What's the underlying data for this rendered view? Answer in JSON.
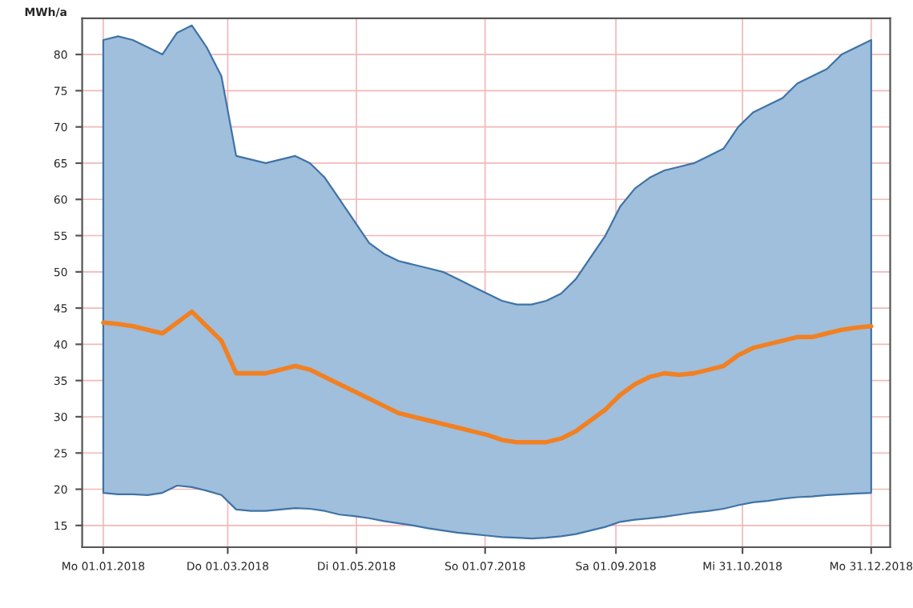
{
  "chart_data": {
    "type": "line",
    "ylabel": "MWh/a",
    "x": [
      "2018-01-01",
      "2018-01-08",
      "2018-01-15",
      "2018-01-22",
      "2018-01-29",
      "2018-02-05",
      "2018-02-12",
      "2018-02-19",
      "2018-02-26",
      "2018-03-05",
      "2018-03-12",
      "2018-03-19",
      "2018-03-26",
      "2018-04-02",
      "2018-04-09",
      "2018-04-16",
      "2018-04-23",
      "2018-04-30",
      "2018-05-07",
      "2018-05-14",
      "2018-05-21",
      "2018-05-28",
      "2018-06-04",
      "2018-06-11",
      "2018-06-18",
      "2018-06-25",
      "2018-07-02",
      "2018-07-09",
      "2018-07-16",
      "2018-07-23",
      "2018-07-30",
      "2018-08-06",
      "2018-08-13",
      "2018-08-20",
      "2018-08-27",
      "2018-09-03",
      "2018-09-10",
      "2018-09-17",
      "2018-09-24",
      "2018-10-01",
      "2018-10-08",
      "2018-10-15",
      "2018-10-22",
      "2018-10-29",
      "2018-11-05",
      "2018-11-12",
      "2018-11-19",
      "2018-11-26",
      "2018-12-03",
      "2018-12-10",
      "2018-12-17",
      "2018-12-24",
      "2018-12-31"
    ],
    "series": [
      {
        "color": "#f28022",
        "values": [
          43,
          42.8,
          42.5,
          42,
          41.5,
          43,
          44.5,
          42.5,
          40.5,
          36,
          36,
          36,
          36.5,
          37,
          36.5,
          35.5,
          34.5,
          33.5,
          32.5,
          31.5,
          30.5,
          30,
          29.5,
          29,
          28.5,
          28,
          27.5,
          26.8,
          26.5,
          26.5,
          26.5,
          27,
          28,
          29.5,
          31,
          33,
          34.5,
          35.5,
          36,
          35.8,
          36,
          36.5,
          37,
          38.5,
          39.5,
          40,
          40.5,
          41,
          41,
          41.5,
          42,
          42.3,
          42.5
        ],
        "lower": [
          19.5,
          19.3,
          19.3,
          19.2,
          19.5,
          20.5,
          20.3,
          19.8,
          19.2,
          17.2,
          17,
          17,
          17.2,
          17.4,
          17.3,
          17,
          16.5,
          16.3,
          16,
          15.6,
          15.3,
          15,
          14.6,
          14.3,
          14,
          13.8,
          13.6,
          13.4,
          13.3,
          13.2,
          13.3,
          13.5,
          13.8,
          14.3,
          14.8,
          15.5,
          15.8,
          16,
          16.2,
          16.5,
          16.8,
          17,
          17.3,
          17.8,
          18.2,
          18.4,
          18.7,
          18.9,
          19,
          19.2,
          19.3,
          19.4,
          19.5
        ],
        "upper": [
          82,
          82.5,
          82,
          81,
          80,
          83,
          84,
          81,
          77,
          66,
          65.5,
          65,
          65.5,
          66,
          65,
          63,
          60,
          57,
          54,
          52.5,
          51.5,
          51,
          50.5,
          50,
          49,
          48,
          47,
          46,
          45.5,
          45.5,
          46,
          47,
          49,
          52,
          55,
          59,
          61.5,
          63,
          64,
          64.5,
          65,
          66,
          67,
          70,
          72,
          73,
          74,
          76,
          77,
          78,
          80,
          81,
          82
        ]
      }
    ],
    "xlim": [
      "2017-12-22",
      "2019-01-09"
    ],
    "xticks": [
      {
        "value": "2018-01-01",
        "label": "Mo 01.01.2018"
      },
      {
        "value": "2018-03-01",
        "label": "Do 01.03.2018"
      },
      {
        "value": "2018-05-01",
        "label": "Di 01.05.2018"
      },
      {
        "value": "2018-07-01",
        "label": "So 01.07.2018"
      },
      {
        "value": "2018-09-01",
        "label": "Sa 01.09.2018"
      },
      {
        "value": "2018-10-31",
        "label": "Mi 31.10.2018"
      },
      {
        "value": "2018-12-31",
        "label": "Mo 31.12.2018"
      }
    ],
    "ylim": [
      12,
      85
    ],
    "yticks": [
      15,
      20,
      25,
      30,
      35,
      40,
      45,
      50,
      55,
      60,
      65,
      70,
      75,
      80
    ],
    "grid": true
  }
}
